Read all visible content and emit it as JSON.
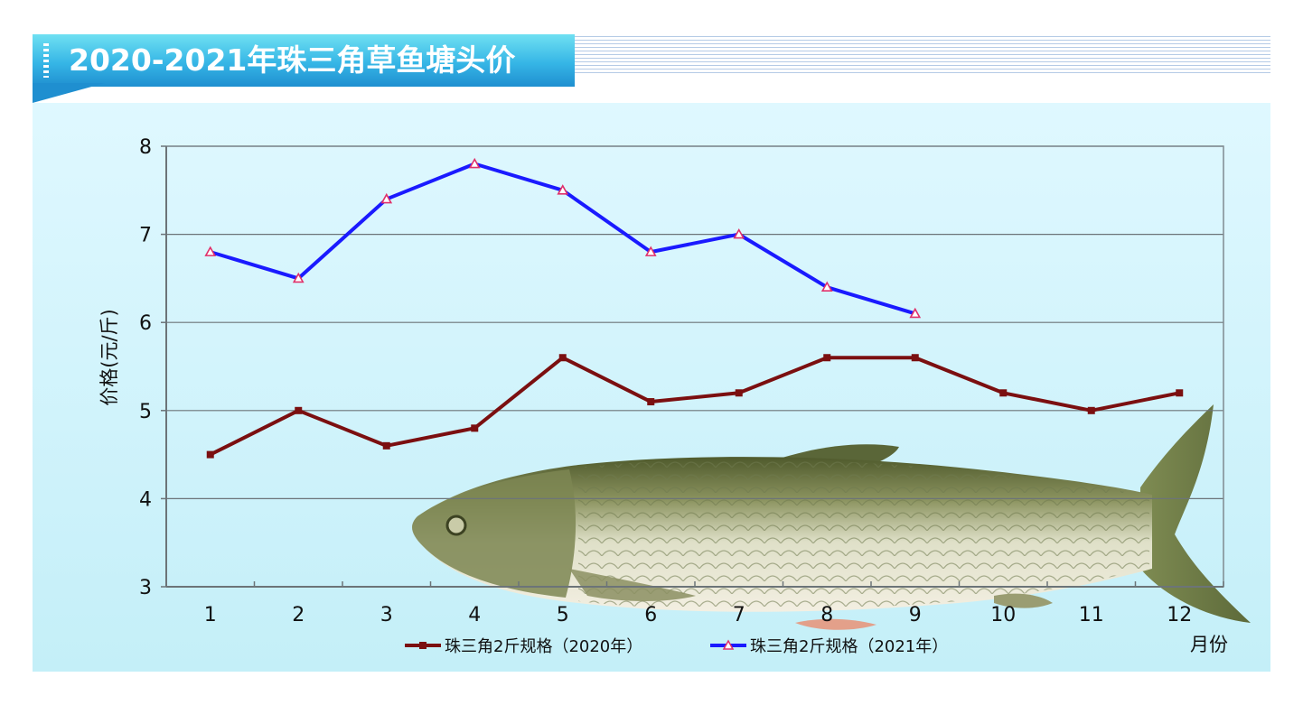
{
  "title": "2020-2021年珠三角草鱼塘头价",
  "chart_data": {
    "type": "line",
    "title": "2020-2021年珠三角草鱼塘头价",
    "xlabel": "月份",
    "ylabel": "价格(元/斤)",
    "categories": [
      "1",
      "2",
      "3",
      "4",
      "5",
      "6",
      "7",
      "8",
      "9",
      "10",
      "11",
      "12"
    ],
    "yticks": [
      "3",
      "4",
      "5",
      "6",
      "7",
      "8"
    ],
    "ylim": [
      3,
      8
    ],
    "grid": true,
    "legend_position": "bottom",
    "series": [
      {
        "name": "珠三角2斤规格（2020年）",
        "color": "#7b0f10",
        "marker": "square",
        "values": [
          4.5,
          5.0,
          4.6,
          4.8,
          5.6,
          5.1,
          5.2,
          5.6,
          5.6,
          5.2,
          5.0,
          5.2
        ]
      },
      {
        "name": "珠三角2斤规格（2021年）",
        "color": "#1a1aff",
        "marker": "triangle",
        "marker_color": "#e0306a",
        "values": [
          6.8,
          6.5,
          7.4,
          7.8,
          7.5,
          6.8,
          7.0,
          6.4,
          6.1,
          null,
          null,
          null
        ]
      }
    ]
  },
  "fish_icon": "grass-carp-image"
}
